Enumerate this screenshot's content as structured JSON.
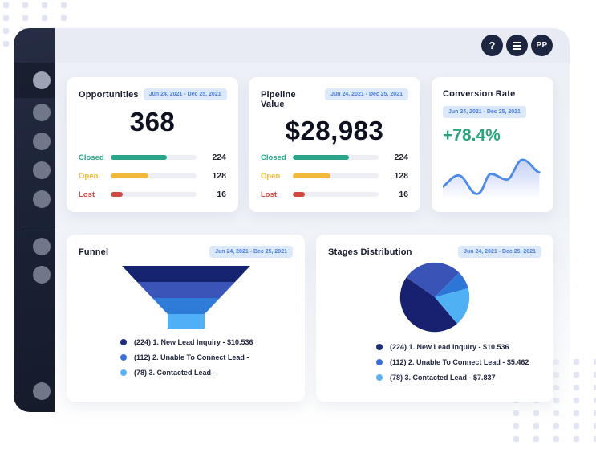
{
  "topbar": {
    "help_label": "?",
    "avatar_initials": "PP"
  },
  "cards": {
    "opportunities": {
      "title": "Opportunities",
      "date_range": "Jun 24, 2021 -  Dec 25, 2021",
      "total": "368",
      "rows": [
        {
          "label": "Closed",
          "value": "224",
          "pct": 65,
          "color": "#29a58b"
        },
        {
          "label": "Open",
          "value": "128",
          "pct": 44,
          "color": "#f0b93c"
        },
        {
          "label": "Lost",
          "value": "16",
          "pct": 14,
          "color": "#cf4b40"
        }
      ]
    },
    "pipeline_value": {
      "title": "Pipeline Value",
      "date_range": "Jun 24, 2021 -  Dec 25, 2021",
      "total": "$28,983",
      "rows": [
        {
          "label": "Closed",
          "value": "224",
          "pct": 65,
          "color": "#29a58b"
        },
        {
          "label": "Open",
          "value": "128",
          "pct": 44,
          "color": "#f0b93c"
        },
        {
          "label": "Lost",
          "value": "16",
          "pct": 14,
          "color": "#cf4b40"
        }
      ]
    },
    "conversion_rate": {
      "title": "Conversion Rate",
      "date_range": "Jun 24, 2021 -  Dec 25, 2021",
      "rate": "+78.4%",
      "rate_color": "#2aa47d",
      "line_color": "#4c8be8"
    },
    "funnel": {
      "title": "Funnel",
      "date_range": "Jun 24, 2021 -  Dec 25, 2021",
      "segment_colors": [
        "#16236f",
        "#3a54b7",
        "#2e7cd8",
        "#4fb0f8"
      ],
      "legend": [
        {
          "color": "#1d2d7c",
          "text": "(224) 1. New Lead Inquiry - $10.536"
        },
        {
          "color": "#3a6fd8",
          "text": "(112) 2. Unable To Connect Lead -"
        },
        {
          "color": "#5db2f6",
          "text": "(78) 3. Contacted Lead -"
        }
      ]
    },
    "stages_distribution": {
      "title": "Stages Distribution",
      "date_range": "Jun 24, 2021 -  Dec 25, 2021",
      "slice_colors": [
        "#3a53b6",
        "#2d76d8",
        "#4fb0f3",
        "#182070"
      ],
      "legend": [
        {
          "color": "#1d2d7c",
          "text": "(224) 1. New Lead Inquiry - $10.536"
        },
        {
          "color": "#3a6fd8",
          "text": "(112) 2. Unable To Connect Lead - $5.462"
        },
        {
          "color": "#5db2f6",
          "text": "(78) 3. Contacted Lead - $7.837"
        }
      ]
    }
  },
  "chart_data": [
    {
      "type": "bar",
      "title": "Opportunities",
      "date_range": "Jun 24, 2021 - Dec 25, 2021",
      "total": 368,
      "categories": [
        "Closed",
        "Open",
        "Lost"
      ],
      "values": [
        224,
        128,
        16
      ],
      "orientation": "horizontal"
    },
    {
      "type": "bar",
      "title": "Pipeline Value",
      "date_range": "Jun 24, 2021 - Dec 25, 2021",
      "total": "$28,983",
      "categories": [
        "Closed",
        "Open",
        "Lost"
      ],
      "values": [
        224,
        128,
        16
      ],
      "orientation": "horizontal"
    },
    {
      "type": "line",
      "title": "Conversion Rate",
      "date_range": "Jun 24, 2021 - Dec 25, 2021",
      "value": "+78.4%",
      "x": [
        0,
        1,
        2,
        3,
        4,
        5,
        6
      ],
      "y_relative_estimated": [
        0.3,
        0.55,
        0.12,
        0.58,
        0.45,
        0.93,
        0.62
      ],
      "axes": "none (sparkline)"
    },
    {
      "type": "bar",
      "subtype": "funnel",
      "title": "Funnel",
      "date_range": "Jun 24, 2021 - Dec 25, 2021",
      "categories": [
        "1. New Lead Inquiry",
        "2. Unable To Connect Lead",
        "3. Contacted Lead"
      ],
      "values": [
        224,
        112,
        78
      ],
      "amounts": [
        "$10.536",
        "",
        ""
      ]
    },
    {
      "type": "pie",
      "title": "Stages Distribution",
      "date_range": "Jun 24, 2021 - Dec 25, 2021",
      "categories": [
        "1. New Lead Inquiry",
        "2. Unable To Connect Lead",
        "3. Contacted Lead"
      ],
      "values": [
        224,
        112,
        78
      ],
      "amounts": [
        "$10.536",
        "$5.462",
        "$7.837"
      ],
      "slice_angles_deg_estimated": {
        "royal_blue": 105,
        "medium_blue": 30,
        "light_blue": 65,
        "navy": 160
      }
    }
  ]
}
